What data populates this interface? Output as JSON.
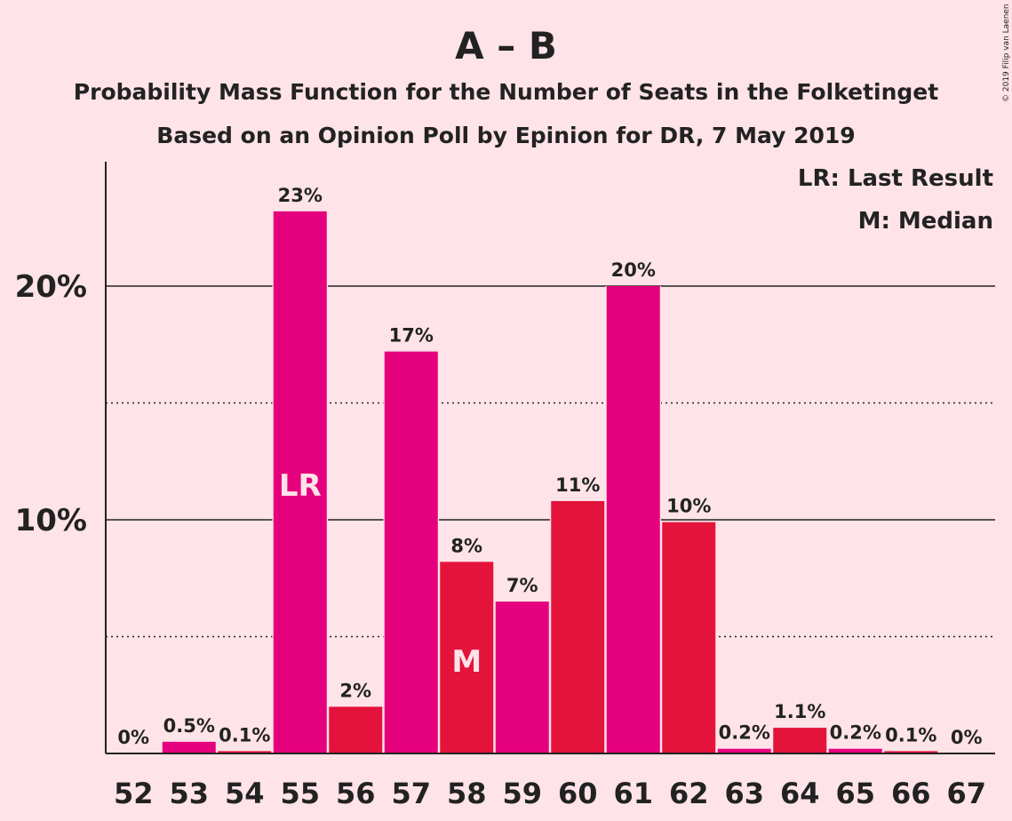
{
  "title": "A – B",
  "subtitle1": "Probability Mass Function for the Number of Seats in the Folketinget",
  "subtitle2": "Based on an Opinion Poll by Epinion for DR, 7 May 2019",
  "copyright": "© 2019 Filip van Laenen",
  "legend": {
    "lr": "LR: Last Result",
    "m": "M: Median"
  },
  "colors": {
    "background": "#fee3e8",
    "bar_primary": "#e5007d",
    "bar_secondary": "#e3133c",
    "text": "#222222"
  },
  "chart_data": {
    "type": "bar",
    "title": "A – B",
    "xlabel": "",
    "ylabel": "",
    "ylim": [
      0,
      0.25
    ],
    "yticks": [
      0.1,
      0.2
    ],
    "ytick_labels": [
      "10%",
      "20%"
    ],
    "dotted_gridlines": [
      0.05,
      0.15
    ],
    "grid": true,
    "legend_position": "top-right",
    "categories": [
      "52",
      "53",
      "54",
      "55",
      "56",
      "57",
      "58",
      "59",
      "60",
      "61",
      "62",
      "63",
      "64",
      "65",
      "66",
      "67"
    ],
    "values": [
      0.0,
      0.005,
      0.001,
      0.232,
      0.02,
      0.172,
      0.082,
      0.065,
      0.108,
      0.2,
      0.099,
      0.002,
      0.011,
      0.002,
      0.001,
      0.0
    ],
    "labels": [
      "0%",
      "0.5%",
      "0.1%",
      "23%",
      "2%",
      "17%",
      "8%",
      "7%",
      "11%",
      "20%",
      "10%",
      "0.2%",
      "1.1%",
      "0.2%",
      "0.1%",
      "0%"
    ],
    "bar_colors": [
      "#e5007d",
      "#e5007d",
      "#e3133c",
      "#e5007d",
      "#e3133c",
      "#e5007d",
      "#e3133c",
      "#e5007d",
      "#e3133c",
      "#e5007d",
      "#e3133c",
      "#e5007d",
      "#e3133c",
      "#e5007d",
      "#e3133c",
      "#e5007d"
    ],
    "annotations": [
      {
        "category": "55",
        "text": "LR"
      },
      {
        "category": "58",
        "text": "M"
      }
    ]
  }
}
